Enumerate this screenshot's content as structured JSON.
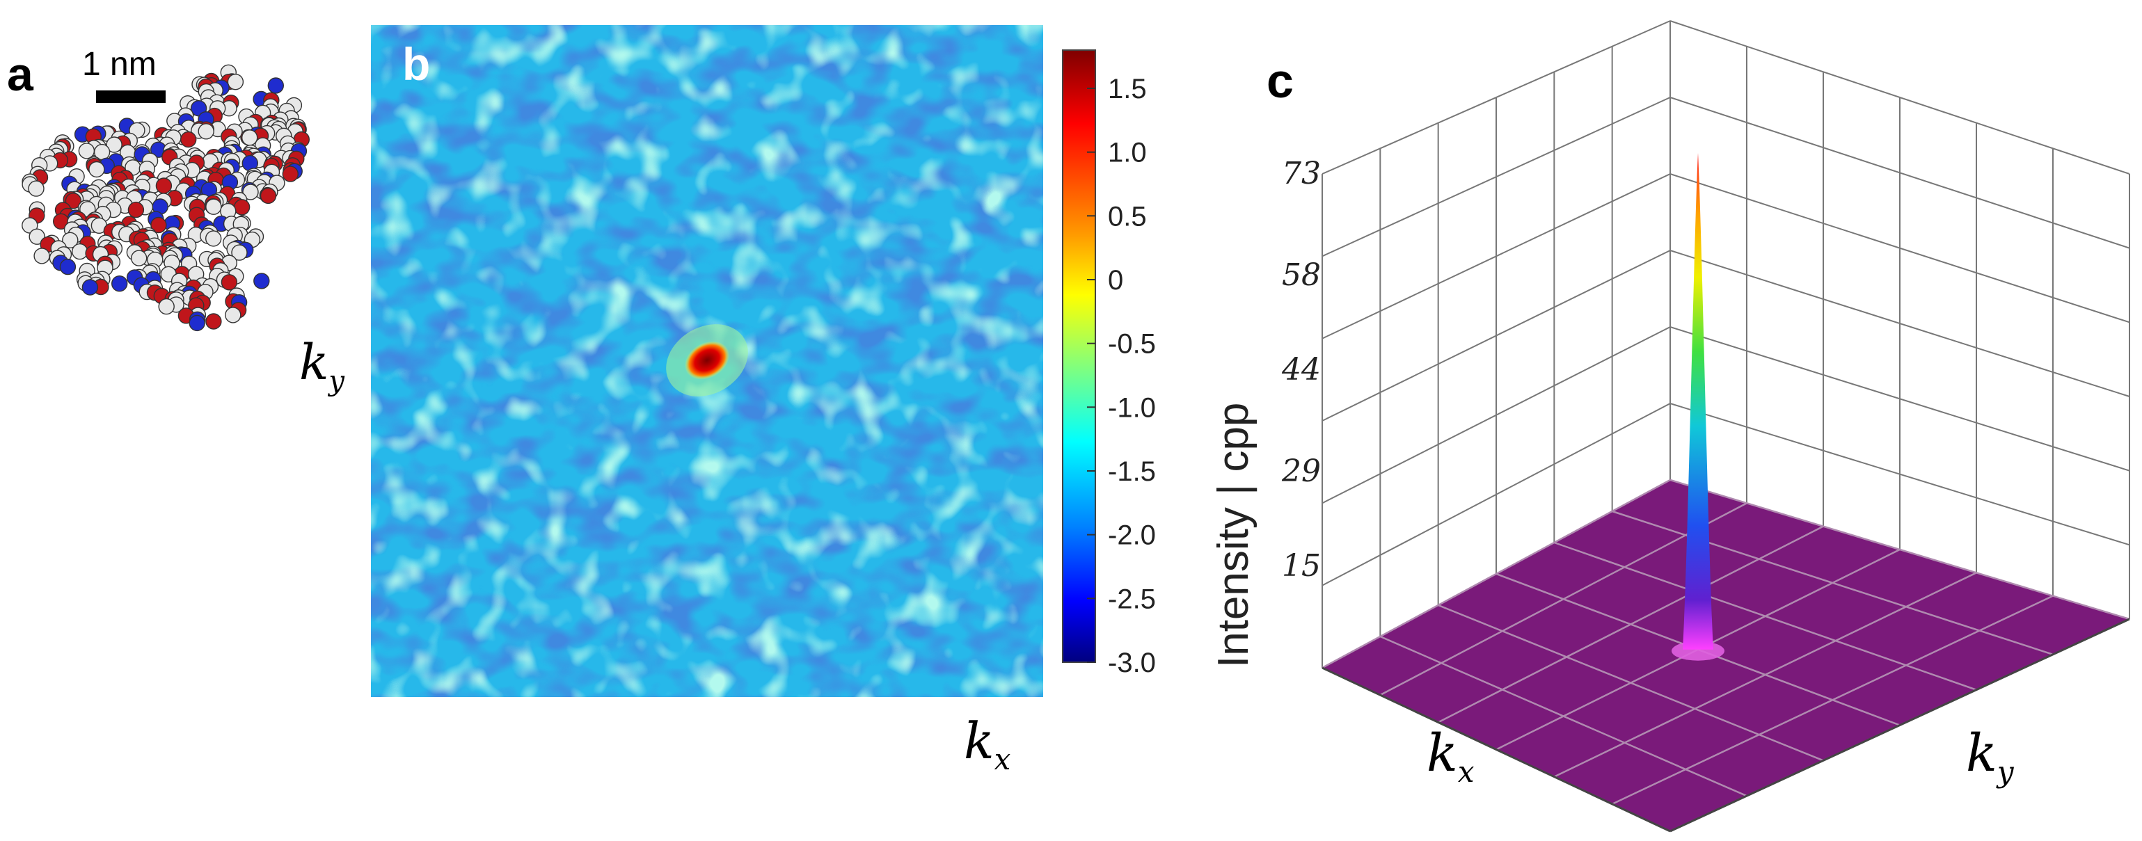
{
  "figure": {
    "panel_a": {
      "label": "a",
      "scale_bar_label": "1 nm",
      "ky_label": "k",
      "ky_sub": "y",
      "atom_colors": {
        "oxygen": "#c0161b",
        "nitrogen": "#1f2ccf",
        "carbon": "#e8e8e8",
        "outline": "#333333"
      }
    },
    "panel_b": {
      "label": "b",
      "kx_label": "k",
      "kx_sub": "x",
      "colorbar": {
        "ticks": [
          "1.5",
          "1.0",
          "0.5",
          "0",
          "-0.5",
          "-1.0",
          "-1.5",
          "-2.0",
          "-2.5",
          "-3.0"
        ],
        "range": [
          -3.0,
          1.8
        ],
        "colormap": "jet"
      },
      "background_color": "#27b8ea",
      "peak_color": "#b00000"
    },
    "panel_c": {
      "label": "c",
      "z_axis_label": "Intensity | cpp",
      "z_ticks": [
        "73",
        "58",
        "44",
        "29",
        "15"
      ],
      "kx_label": "k",
      "kx_sub": "x",
      "ky_label": "k",
      "ky_sub": "y",
      "floor_color": "#7a1a7a",
      "peak_value": 73
    }
  },
  "chart_data": [
    {
      "type": "heatmap",
      "title": "",
      "xlabel": "k_x",
      "ylabel": "k_y",
      "colorbar_ticks": [
        1.5,
        1.0,
        0.5,
        0,
        -0.5,
        -1.0,
        -1.5,
        -2.0,
        -2.5,
        -3.0
      ],
      "value_range": [
        -3.0,
        1.8
      ],
      "peak": {
        "location": "center",
        "value": 1.8
      },
      "background_mean": -1.5
    },
    {
      "type": "surface",
      "title": "",
      "xlabel": "k_x",
      "ylabel": "k_y",
      "zlabel": "Intensity | cpp",
      "z_ticks": [
        15,
        29,
        44,
        58,
        73
      ],
      "zlim": [
        0,
        73
      ],
      "peak": {
        "location": "center",
        "value": 73
      }
    }
  ]
}
